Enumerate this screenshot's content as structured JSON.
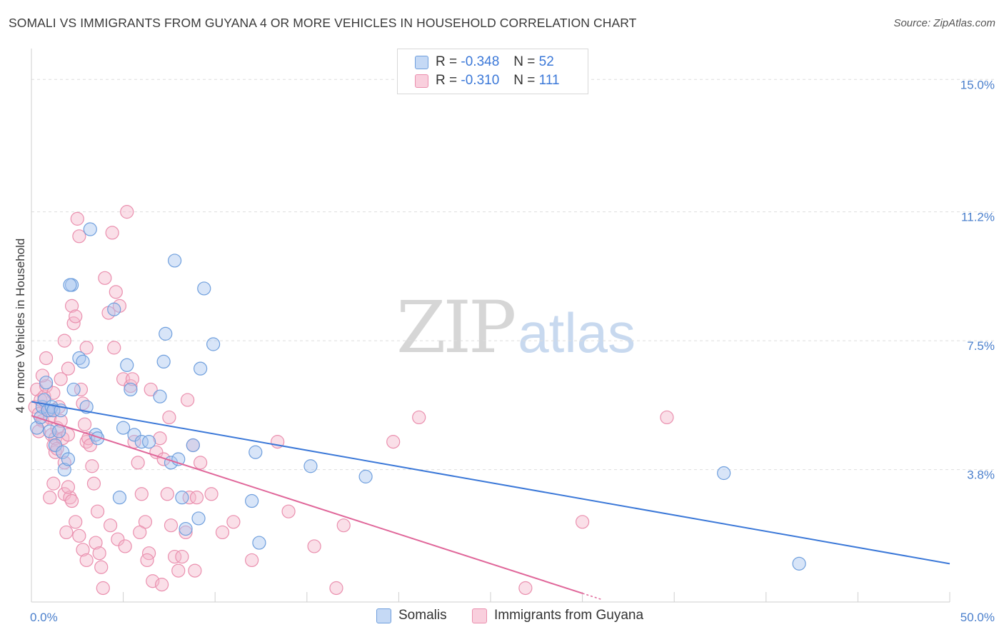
{
  "header": {
    "title": "SOMALI VS IMMIGRANTS FROM GUYANA 4 OR MORE VEHICLES IN HOUSEHOLD CORRELATION CHART",
    "source": "Source: ZipAtlas.com"
  },
  "watermark": {
    "zip": "ZIP",
    "atlas": "atlas"
  },
  "legend": {
    "somali": {
      "r_label": "R =",
      "r_value": "-0.348",
      "n_label": "N =",
      "n_value": "52",
      "name": "Somalis"
    },
    "guyana": {
      "r_label": "R =",
      "r_value": "-0.310",
      "n_label": "N =",
      "n_value": "111",
      "name": "Immigrants from Guyana"
    }
  },
  "colors": {
    "somali_fill": "#a8c6ef",
    "somali_stroke": "#6f9fdd",
    "somali_line": "#3b78d8",
    "guyana_fill": "#f5b7cc",
    "guyana_stroke": "#ea8fae",
    "guyana_line": "#e0679a",
    "grid": "#dddddd",
    "tick_text": "#4a7fcc"
  },
  "chart_data": {
    "type": "scatter",
    "title": "SOMALI VS IMMIGRANTS FROM GUYANA 4 OR MORE VEHICLES IN HOUSEHOLD CORRELATION CHART",
    "xlabel": "",
    "ylabel": "4 or more Vehicles in Household",
    "xlim": [
      0,
      50
    ],
    "ylim": [
      0,
      15.6
    ],
    "x_tick_labels": [
      {
        "value": 0,
        "label": "0.0%"
      },
      {
        "value": 50,
        "label": "50.0%"
      }
    ],
    "x_minor_ticks": [
      0,
      5,
      10,
      15,
      20,
      25,
      30,
      35,
      40,
      45,
      50
    ],
    "y_ticks": [
      {
        "value": 3.8,
        "label": "3.8%"
      },
      {
        "value": 7.5,
        "label": "7.5%"
      },
      {
        "value": 11.2,
        "label": "11.2%"
      },
      {
        "value": 15.0,
        "label": "15.0%"
      }
    ],
    "series": [
      {
        "name": "Somalis",
        "r": -0.348,
        "n": 52,
        "trend": {
          "x0": 0,
          "y0": 5.75,
          "x1": 50,
          "y1": 1.1
        },
        "points": [
          [
            0.3,
            5.0
          ],
          [
            0.5,
            5.3
          ],
          [
            0.6,
            5.6
          ],
          [
            0.7,
            5.8
          ],
          [
            0.8,
            6.3
          ],
          [
            0.9,
            5.5
          ],
          [
            1.0,
            4.9
          ],
          [
            1.1,
            5.6
          ],
          [
            1.2,
            5.5
          ],
          [
            1.3,
            4.5
          ],
          [
            1.5,
            4.9
          ],
          [
            1.6,
            5.5
          ],
          [
            1.7,
            4.3
          ],
          [
            1.8,
            3.8
          ],
          [
            2.0,
            4.1
          ],
          [
            2.2,
            9.1
          ],
          [
            2.3,
            6.1
          ],
          [
            3.2,
            10.7
          ],
          [
            2.6,
            7.0
          ],
          [
            2.8,
            6.9
          ],
          [
            3.0,
            5.6
          ],
          [
            3.5,
            4.8
          ],
          [
            3.6,
            4.7
          ],
          [
            4.5,
            8.4
          ],
          [
            4.8,
            3.0
          ],
          [
            5.0,
            5.0
          ],
          [
            5.2,
            6.8
          ],
          [
            5.4,
            6.1
          ],
          [
            5.6,
            4.8
          ],
          [
            6.0,
            4.6
          ],
          [
            6.4,
            4.6
          ],
          [
            7.0,
            5.9
          ],
          [
            7.2,
            6.9
          ],
          [
            7.3,
            7.7
          ],
          [
            7.6,
            4.0
          ],
          [
            7.8,
            9.8
          ],
          [
            8.0,
            4.1
          ],
          [
            8.2,
            3.0
          ],
          [
            8.4,
            2.1
          ],
          [
            8.8,
            4.5
          ],
          [
            9.1,
            2.4
          ],
          [
            9.2,
            6.7
          ],
          [
            9.4,
            9.0
          ],
          [
            9.9,
            7.4
          ],
          [
            12.0,
            2.9
          ],
          [
            12.2,
            4.3
          ],
          [
            12.4,
            1.7
          ],
          [
            15.2,
            3.9
          ],
          [
            18.2,
            3.6
          ],
          [
            37.7,
            3.7
          ],
          [
            41.8,
            1.1
          ],
          [
            2.1,
            9.1
          ]
        ]
      },
      {
        "name": "Immigrants from Guyana",
        "r": -0.31,
        "n": 111,
        "trend": {
          "x0": 0,
          "y0": 5.35,
          "x1": 30,
          "y1": 0.25,
          "dash_x1": 31,
          "dash_y1": 0.08
        },
        "points": [
          [
            0.2,
            5.6
          ],
          [
            0.3,
            6.1
          ],
          [
            0.4,
            5.4
          ],
          [
            0.5,
            5.8
          ],
          [
            0.6,
            5.2
          ],
          [
            0.7,
            5.9
          ],
          [
            0.8,
            6.2
          ],
          [
            0.9,
            5.5
          ],
          [
            1.0,
            5.3
          ],
          [
            1.1,
            4.8
          ],
          [
            1.2,
            4.5
          ],
          [
            1.3,
            4.7
          ],
          [
            1.0,
            3.0
          ],
          [
            1.2,
            3.4
          ],
          [
            1.3,
            4.3
          ],
          [
            1.4,
            5.0
          ],
          [
            1.5,
            5.6
          ],
          [
            1.6,
            6.4
          ],
          [
            1.7,
            4.7
          ],
          [
            1.8,
            3.1
          ],
          [
            1.9,
            2.0
          ],
          [
            2.0,
            4.8
          ],
          [
            2.1,
            3.0
          ],
          [
            2.2,
            8.5
          ],
          [
            2.3,
            8.0
          ],
          [
            2.4,
            8.2
          ],
          [
            2.5,
            11.0
          ],
          [
            2.6,
            10.5
          ],
          [
            2.7,
            6.1
          ],
          [
            2.8,
            5.7
          ],
          [
            2.9,
            5.1
          ],
          [
            3.0,
            4.6
          ],
          [
            3.1,
            4.7
          ],
          [
            3.2,
            4.5
          ],
          [
            3.3,
            3.9
          ],
          [
            3.4,
            3.4
          ],
          [
            3.5,
            1.7
          ],
          [
            3.6,
            2.6
          ],
          [
            3.7,
            1.4
          ],
          [
            3.8,
            1.0
          ],
          [
            3.9,
            0.4
          ],
          [
            4.0,
            9.3
          ],
          [
            4.2,
            8.3
          ],
          [
            4.4,
            10.6
          ],
          [
            4.6,
            8.9
          ],
          [
            4.8,
            8.5
          ],
          [
            5.0,
            6.4
          ],
          [
            5.2,
            11.2
          ],
          [
            5.4,
            6.2
          ],
          [
            5.6,
            4.6
          ],
          [
            5.8,
            4.0
          ],
          [
            6.0,
            3.1
          ],
          [
            6.2,
            2.3
          ],
          [
            6.4,
            1.4
          ],
          [
            6.6,
            0.6
          ],
          [
            6.8,
            4.3
          ],
          [
            7.0,
            4.7
          ],
          [
            7.2,
            4.1
          ],
          [
            7.4,
            3.1
          ],
          [
            7.6,
            2.2
          ],
          [
            7.8,
            1.3
          ],
          [
            8.0,
            0.9
          ],
          [
            8.2,
            1.3
          ],
          [
            8.4,
            2.0
          ],
          [
            8.6,
            3.0
          ],
          [
            8.8,
            4.5
          ],
          [
            1.8,
            7.5
          ],
          [
            2.0,
            6.7
          ],
          [
            3.0,
            7.3
          ],
          [
            4.5,
            7.3
          ],
          [
            5.5,
            6.4
          ],
          [
            6.5,
            6.1
          ],
          [
            7.5,
            5.3
          ],
          [
            8.5,
            5.8
          ],
          [
            9.0,
            3.0
          ],
          [
            9.2,
            4.0
          ],
          [
            9.8,
            3.1
          ],
          [
            10.4,
            2.0
          ],
          [
            11.0,
            2.3
          ],
          [
            12.0,
            1.2
          ],
          [
            13.4,
            4.6
          ],
          [
            14.0,
            2.6
          ],
          [
            15.4,
            1.6
          ],
          [
            16.6,
            0.4
          ],
          [
            17.0,
            2.2
          ],
          [
            19.7,
            4.6
          ],
          [
            21.1,
            5.3
          ],
          [
            26.9,
            0.4
          ],
          [
            30.0,
            2.3
          ],
          [
            34.6,
            5.3
          ],
          [
            0.4,
            4.9
          ],
          [
            0.6,
            6.5
          ],
          [
            0.8,
            7.0
          ],
          [
            1.0,
            5.5
          ],
          [
            1.2,
            6.0
          ],
          [
            1.4,
            4.4
          ],
          [
            1.6,
            5.2
          ],
          [
            1.8,
            4.0
          ],
          [
            2.0,
            3.3
          ],
          [
            2.2,
            2.9
          ],
          [
            2.4,
            2.3
          ],
          [
            2.6,
            1.9
          ],
          [
            2.8,
            1.5
          ],
          [
            3.0,
            1.2
          ],
          [
            4.3,
            2.2
          ],
          [
            4.7,
            1.8
          ],
          [
            5.1,
            1.6
          ],
          [
            5.9,
            2.0
          ],
          [
            6.3,
            1.2
          ],
          [
            7.1,
            0.5
          ],
          [
            8.9,
            0.9
          ]
        ]
      }
    ]
  }
}
